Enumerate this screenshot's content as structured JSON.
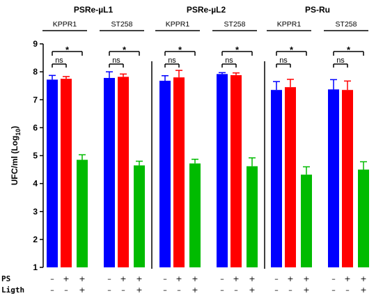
{
  "chart_data": {
    "type": "bar",
    "ylabel_main": "UFC/ml (Log",
    "ylabel_sub": "10",
    "ylabel_close": ")",
    "ylim": [
      1,
      9
    ],
    "yticks": [
      1,
      2,
      3,
      4,
      5,
      6,
      7,
      8,
      9
    ],
    "colors": [
      "#0000ff",
      "#ff0000",
      "#00bb00"
    ],
    "error_color": "#000000",
    "groups": [
      {
        "title": "PSRe-µL1",
        "subgroups": [
          {
            "label": "KPPR1",
            "values": [
              7.72,
              7.75,
              4.85
            ],
            "errors": [
              0.15,
              0.08,
              0.18
            ],
            "sig_ns": "ns",
            "sig_star": "*"
          },
          {
            "label": "ST258",
            "values": [
              7.78,
              7.82,
              4.65
            ],
            "errors": [
              0.22,
              0.1,
              0.15
            ],
            "sig_ns": "ns",
            "sig_star": "*"
          }
        ]
      },
      {
        "title": "PSRe-µL2",
        "subgroups": [
          {
            "label": "KPPR1",
            "values": [
              7.68,
              7.8,
              4.72
            ],
            "errors": [
              0.18,
              0.25,
              0.15
            ],
            "sig_ns": "ns",
            "sig_star": "*"
          },
          {
            "label": "ST258",
            "values": [
              7.92,
              7.88,
              4.62
            ],
            "errors": [
              0.05,
              0.08,
              0.3
            ],
            "sig_ns": "ns",
            "sig_star": "*"
          }
        ]
      },
      {
        "title": "PS-Ru",
        "subgroups": [
          {
            "label": "KPPR1",
            "values": [
              7.35,
              7.45,
              4.32
            ],
            "errors": [
              0.3,
              0.28,
              0.28
            ],
            "sig_ns": "ns",
            "sig_star": "*"
          },
          {
            "label": "ST258",
            "values": [
              7.37,
              7.35,
              4.5
            ],
            "errors": [
              0.35,
              0.32,
              0.28
            ],
            "sig_ns": "ns",
            "sig_star": "*"
          }
        ]
      }
    ],
    "condition_rows": [
      {
        "label": "PS",
        "values": [
          "–",
          "+",
          "+"
        ]
      },
      {
        "label": "Ligth",
        "values": [
          "–",
          "–",
          "+"
        ]
      }
    ]
  }
}
